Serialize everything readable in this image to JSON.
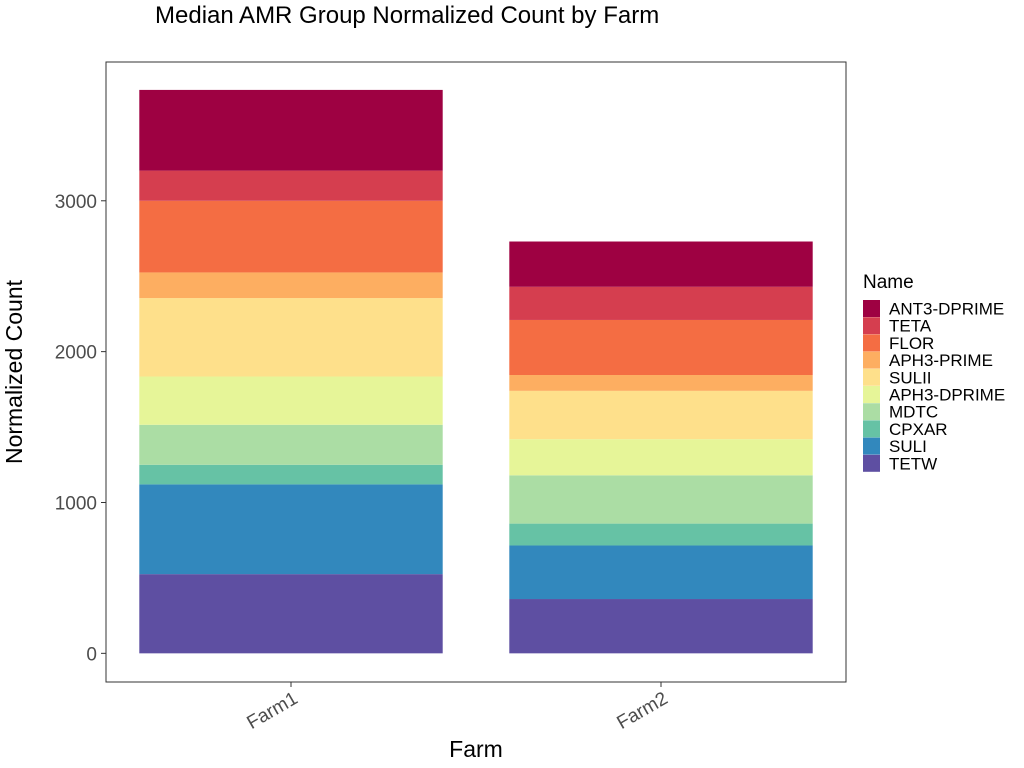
{
  "chart_data": {
    "type": "bar",
    "stacked": true,
    "title": "Median AMR Group Normalized Count by Farm",
    "xlabel": "Farm",
    "ylabel": "Normalized Count",
    "categories": [
      "Farm1",
      "Farm2"
    ],
    "ylim": [
      -190,
      3920
    ],
    "yticks": [
      0,
      1000,
      2000,
      3000
    ],
    "grid": false,
    "legend": {
      "title": "Name",
      "position": "right"
    },
    "series": [
      {
        "name": "TETW",
        "color": "#5E4FA2",
        "values": [
          525,
          360
        ]
      },
      {
        "name": "SULI",
        "color": "#3288BD",
        "values": [
          595,
          355
        ]
      },
      {
        "name": "CPXAR",
        "color": "#66C2A5",
        "values": [
          130,
          145
        ]
      },
      {
        "name": "MDTC",
        "color": "#ABDDA4",
        "values": [
          265,
          320
        ]
      },
      {
        "name": "APH3-DPRIME",
        "color": "#E6F598",
        "values": [
          320,
          240
        ]
      },
      {
        "name": "SULII",
        "color": "#FEE08B",
        "values": [
          520,
          320
        ]
      },
      {
        "name": "APH3-PRIME",
        "color": "#FDAE61",
        "values": [
          170,
          105
        ]
      },
      {
        "name": "FLOR",
        "color": "#F46D43",
        "values": [
          475,
          365
        ]
      },
      {
        "name": "TETA",
        "color": "#D53E4F",
        "values": [
          200,
          220
        ]
      },
      {
        "name": "ANT3-DPRIME",
        "color": "#9E0142",
        "values": [
          535,
          300
        ]
      }
    ]
  }
}
